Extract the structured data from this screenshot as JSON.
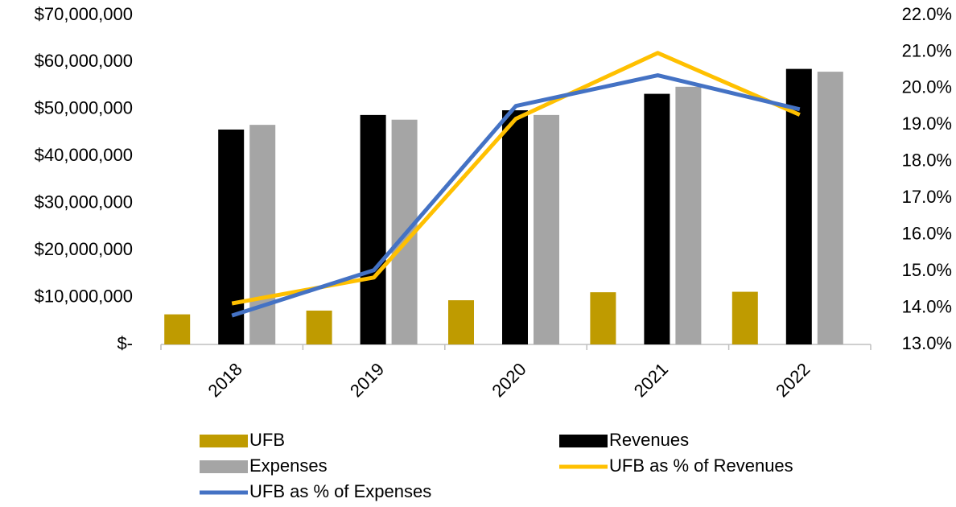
{
  "chart_data": {
    "type": "bar-line",
    "categories": [
      "2018",
      "2019",
      "2020",
      "2021",
      "2022"
    ],
    "series": [
      {
        "name": "UFB",
        "color": "#bf9b00",
        "type": "bar",
        "values": [
          6400000,
          7200000,
          9400000,
          11100000,
          11200000
        ]
      },
      {
        "name": "Revenues",
        "color": "#000000",
        "type": "bar",
        "values": [
          45700000,
          48800000,
          49800000,
          53300000,
          58600000
        ]
      },
      {
        "name": "Expenses",
        "color": "#a5a5a5",
        "type": "bar",
        "values": [
          46700000,
          47800000,
          48800000,
          54800000,
          58000000
        ]
      },
      {
        "name": "UFB as % of Revenues",
        "color": "#ffc000",
        "type": "line",
        "axis": "y2",
        "values": [
          14.12,
          14.83,
          19.17,
          20.97,
          19.28
        ]
      },
      {
        "name": "UFB as % of Expenses",
        "color": "#4472c4",
        "type": "line",
        "axis": "y2",
        "values": [
          13.79,
          15.03,
          19.52,
          20.36,
          19.43
        ]
      }
    ],
    "ylim": [
      0,
      70000000
    ],
    "yticks": [
      {
        "value": 0,
        "label": "$-"
      },
      {
        "value": 10000000,
        "label": "$10,000,000"
      },
      {
        "value": 20000000,
        "label": "$20,000,000"
      },
      {
        "value": 30000000,
        "label": "$30,000,000"
      },
      {
        "value": 40000000,
        "label": "$40,000,000"
      },
      {
        "value": 50000000,
        "label": "$50,000,000"
      },
      {
        "value": 60000000,
        "label": "$60,000,000"
      },
      {
        "value": 70000000,
        "label": "$70,000,000"
      }
    ],
    "y2lim": [
      13,
      22
    ],
    "y2ticks": [
      {
        "value": 13,
        "label": "13.0%"
      },
      {
        "value": 14,
        "label": "14.0%"
      },
      {
        "value": 15,
        "label": "15.0%"
      },
      {
        "value": 16,
        "label": "16.0%"
      },
      {
        "value": 17,
        "label": "17.0%"
      },
      {
        "value": 18,
        "label": "18.0%"
      },
      {
        "value": 19,
        "label": "19.0%"
      },
      {
        "value": 20,
        "label": "20.0%"
      },
      {
        "value": 21,
        "label": "21.0%"
      },
      {
        "value": 22,
        "label": "22.0%"
      }
    ],
    "grid": false,
    "legend": "bottom"
  }
}
